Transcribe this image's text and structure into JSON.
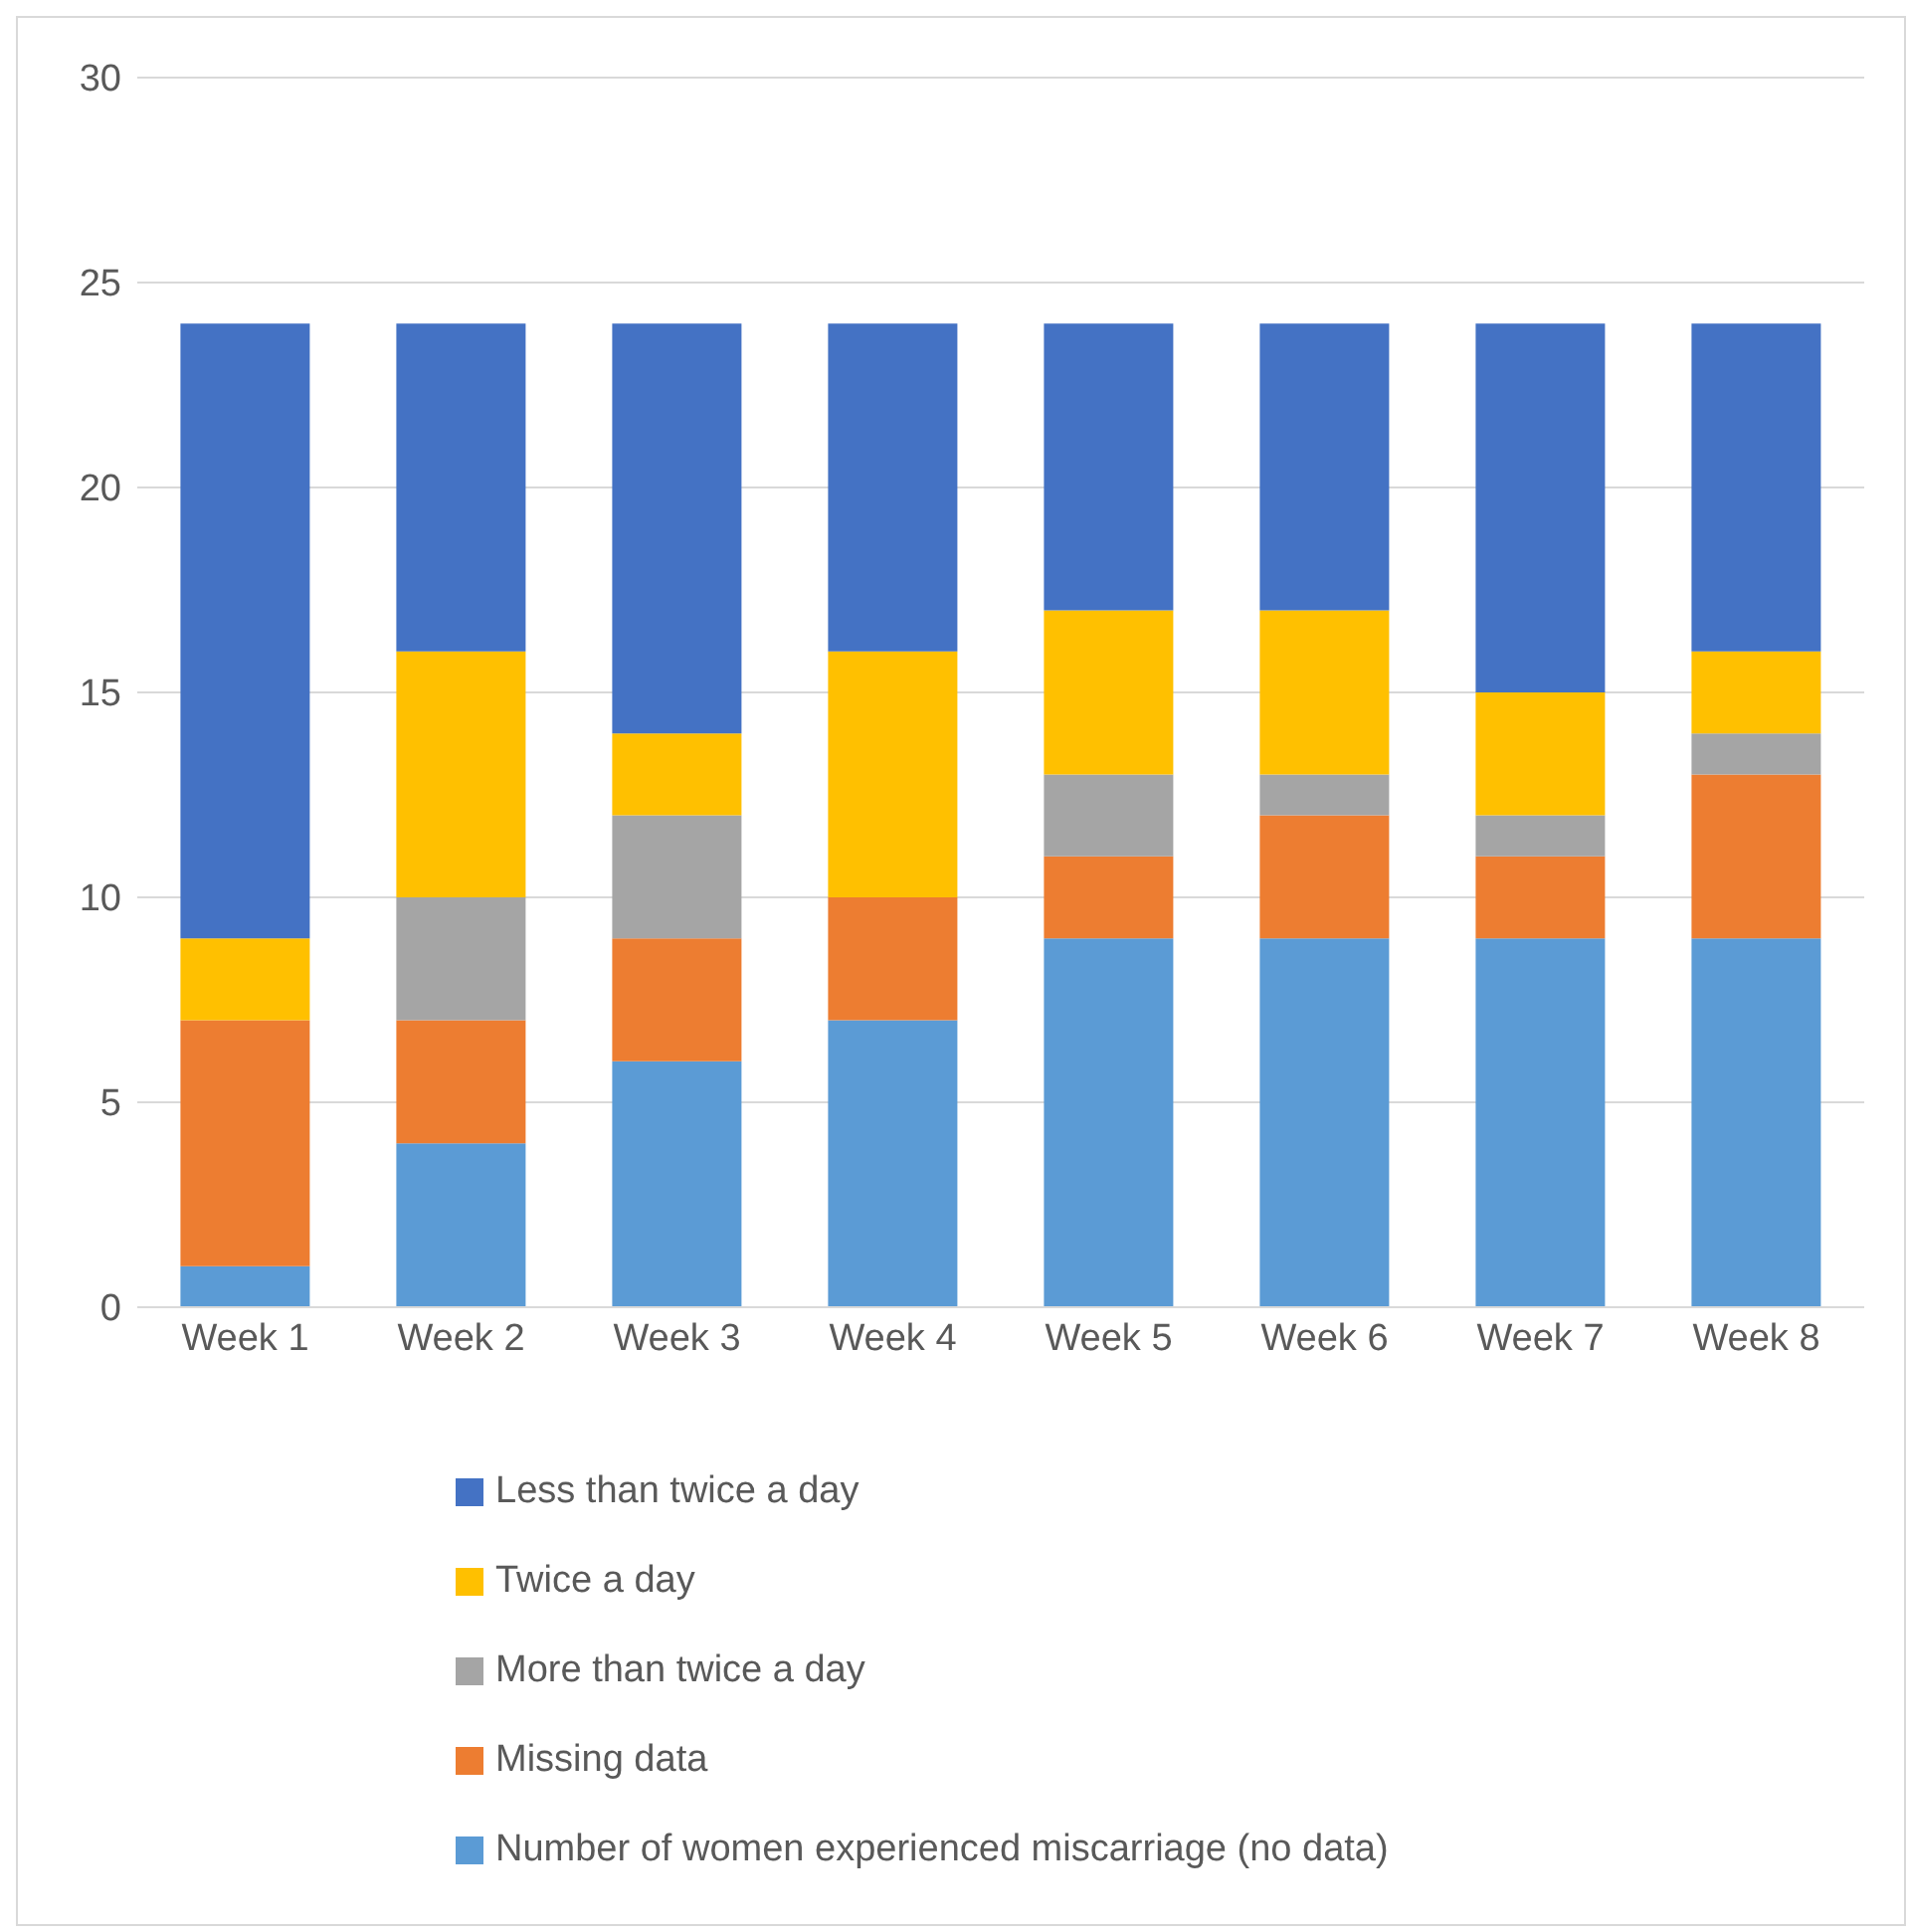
{
  "chart_data": {
    "type": "bar",
    "stacked": true,
    "categories": [
      "Week 1",
      "Week 2",
      "Week 3",
      "Week 4",
      "Week 5",
      "Week 6",
      "Week 7",
      "Week 8"
    ],
    "series": [
      {
        "name": "Number of women experienced miscarriage (no data)",
        "color": "#5b9bd5",
        "values": [
          1,
          4,
          6,
          7,
          9,
          9,
          9,
          9
        ]
      },
      {
        "name": "Missing data",
        "color": "#ed7d31",
        "values": [
          6,
          3,
          3,
          3,
          2,
          3,
          2,
          4
        ]
      },
      {
        "name": "More than twice a day",
        "color": "#a5a5a5",
        "values": [
          0,
          3,
          3,
          0,
          2,
          1,
          1,
          1
        ]
      },
      {
        "name": "Twice a day",
        "color": "#ffc000",
        "values": [
          2,
          6,
          2,
          6,
          4,
          4,
          3,
          2
        ]
      },
      {
        "name": "Less than twice a day",
        "color": "#4472c4",
        "values": [
          15,
          8,
          10,
          8,
          7,
          7,
          9,
          8
        ]
      }
    ],
    "ylim": [
      0,
      30
    ],
    "yticks": [
      0,
      5,
      10,
      15,
      20,
      25,
      30
    ],
    "grid": "y",
    "legend": "bottom"
  }
}
